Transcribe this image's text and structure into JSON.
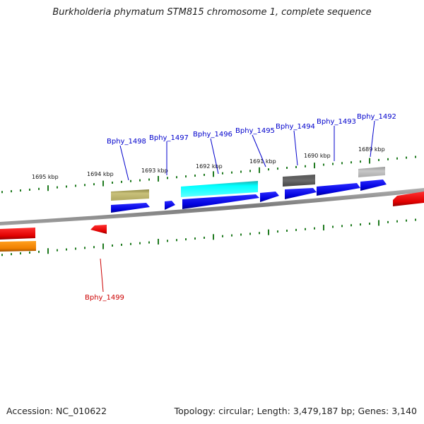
{
  "title": "Burkholderia phymatum STM815 chromosome 1, complete sequence",
  "footer": {
    "accession": "Accession: NC_010622",
    "topology": "Topology: circular; Length: 3,479,187 bp; Genes: 3,140"
  },
  "colors": {
    "backbone": "#8a8a8a",
    "tick": "#1f7a1f",
    "label_forward": "#0000cc",
    "label_reverse": "#cc0000"
  },
  "ruler_labels": {
    "kbp_1695": "1695 kbp",
    "kbp_1694": "1694 kbp",
    "kbp_1693": "1693 kbp",
    "kbp_1692": "1692 kbp",
    "kbp_1691": "1691 kbp",
    "kbp_1690": "1690 kbp",
    "kbp_1689": "1689 kbp"
  },
  "gene_labels": {
    "bphy_1492": "Bphy_1492",
    "bphy_1493": "Bphy_1493",
    "bphy_1494": "Bphy_1494",
    "bphy_1495": "Bphy_1495",
    "bphy_1496": "Bphy_1496",
    "bphy_1497": "Bphy_1497",
    "bphy_1498": "Bphy_1498",
    "bphy_1499": "Bphy_1499"
  }
}
